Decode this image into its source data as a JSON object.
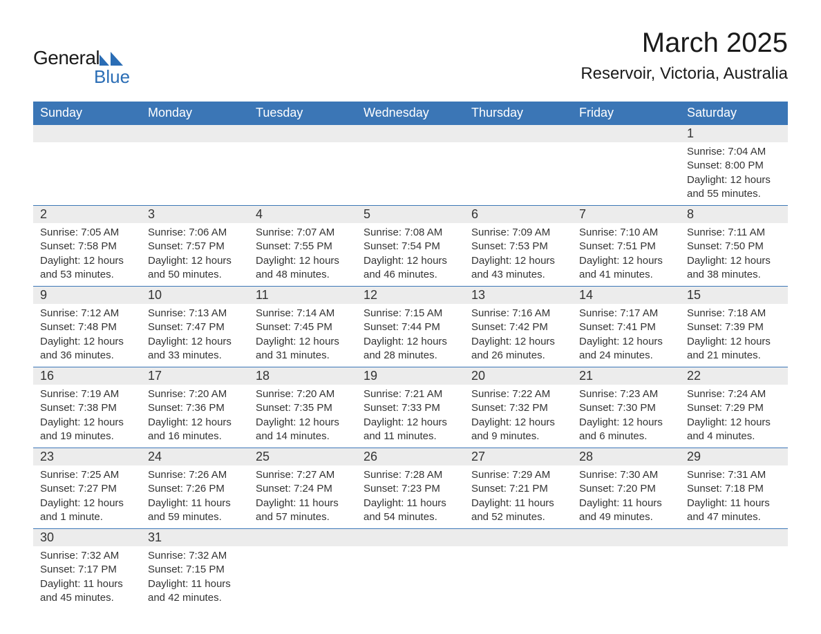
{
  "brand": {
    "word1": "General",
    "word2": "Blue",
    "mark_color": "#2a6db5",
    "word1_color": "#1a1a1a",
    "word2_color": "#2a6db5"
  },
  "header": {
    "month_title": "March 2025",
    "location": "Reservoir, Victoria, Australia",
    "title_fontsize": 40,
    "location_fontsize": 24,
    "title_color": "#1a1a1a"
  },
  "calendar": {
    "type": "table",
    "header_bg": "#3b76b6",
    "header_text_color": "#ffffff",
    "daynum_bg": "#ececec",
    "row_divider_color": "#3b76b6",
    "cell_text_color": "#333333",
    "background_color": "#ffffff",
    "header_fontsize": 18,
    "daynum_fontsize": 18,
    "detail_fontsize": 15,
    "columns": [
      "Sunday",
      "Monday",
      "Tuesday",
      "Wednesday",
      "Thursday",
      "Friday",
      "Saturday"
    ],
    "weeks": [
      [
        null,
        null,
        null,
        null,
        null,
        null,
        {
          "day": "1",
          "sunrise": "Sunrise: 7:04 AM",
          "sunset": "Sunset: 8:00 PM",
          "daylight1": "Daylight: 12 hours",
          "daylight2": "and 55 minutes."
        }
      ],
      [
        {
          "day": "2",
          "sunrise": "Sunrise: 7:05 AM",
          "sunset": "Sunset: 7:58 PM",
          "daylight1": "Daylight: 12 hours",
          "daylight2": "and 53 minutes."
        },
        {
          "day": "3",
          "sunrise": "Sunrise: 7:06 AM",
          "sunset": "Sunset: 7:57 PM",
          "daylight1": "Daylight: 12 hours",
          "daylight2": "and 50 minutes."
        },
        {
          "day": "4",
          "sunrise": "Sunrise: 7:07 AM",
          "sunset": "Sunset: 7:55 PM",
          "daylight1": "Daylight: 12 hours",
          "daylight2": "and 48 minutes."
        },
        {
          "day": "5",
          "sunrise": "Sunrise: 7:08 AM",
          "sunset": "Sunset: 7:54 PM",
          "daylight1": "Daylight: 12 hours",
          "daylight2": "and 46 minutes."
        },
        {
          "day": "6",
          "sunrise": "Sunrise: 7:09 AM",
          "sunset": "Sunset: 7:53 PM",
          "daylight1": "Daylight: 12 hours",
          "daylight2": "and 43 minutes."
        },
        {
          "day": "7",
          "sunrise": "Sunrise: 7:10 AM",
          "sunset": "Sunset: 7:51 PM",
          "daylight1": "Daylight: 12 hours",
          "daylight2": "and 41 minutes."
        },
        {
          "day": "8",
          "sunrise": "Sunrise: 7:11 AM",
          "sunset": "Sunset: 7:50 PM",
          "daylight1": "Daylight: 12 hours",
          "daylight2": "and 38 minutes."
        }
      ],
      [
        {
          "day": "9",
          "sunrise": "Sunrise: 7:12 AM",
          "sunset": "Sunset: 7:48 PM",
          "daylight1": "Daylight: 12 hours",
          "daylight2": "and 36 minutes."
        },
        {
          "day": "10",
          "sunrise": "Sunrise: 7:13 AM",
          "sunset": "Sunset: 7:47 PM",
          "daylight1": "Daylight: 12 hours",
          "daylight2": "and 33 minutes."
        },
        {
          "day": "11",
          "sunrise": "Sunrise: 7:14 AM",
          "sunset": "Sunset: 7:45 PM",
          "daylight1": "Daylight: 12 hours",
          "daylight2": "and 31 minutes."
        },
        {
          "day": "12",
          "sunrise": "Sunrise: 7:15 AM",
          "sunset": "Sunset: 7:44 PM",
          "daylight1": "Daylight: 12 hours",
          "daylight2": "and 28 minutes."
        },
        {
          "day": "13",
          "sunrise": "Sunrise: 7:16 AM",
          "sunset": "Sunset: 7:42 PM",
          "daylight1": "Daylight: 12 hours",
          "daylight2": "and 26 minutes."
        },
        {
          "day": "14",
          "sunrise": "Sunrise: 7:17 AM",
          "sunset": "Sunset: 7:41 PM",
          "daylight1": "Daylight: 12 hours",
          "daylight2": "and 24 minutes."
        },
        {
          "day": "15",
          "sunrise": "Sunrise: 7:18 AM",
          "sunset": "Sunset: 7:39 PM",
          "daylight1": "Daylight: 12 hours",
          "daylight2": "and 21 minutes."
        }
      ],
      [
        {
          "day": "16",
          "sunrise": "Sunrise: 7:19 AM",
          "sunset": "Sunset: 7:38 PM",
          "daylight1": "Daylight: 12 hours",
          "daylight2": "and 19 minutes."
        },
        {
          "day": "17",
          "sunrise": "Sunrise: 7:20 AM",
          "sunset": "Sunset: 7:36 PM",
          "daylight1": "Daylight: 12 hours",
          "daylight2": "and 16 minutes."
        },
        {
          "day": "18",
          "sunrise": "Sunrise: 7:20 AM",
          "sunset": "Sunset: 7:35 PM",
          "daylight1": "Daylight: 12 hours",
          "daylight2": "and 14 minutes."
        },
        {
          "day": "19",
          "sunrise": "Sunrise: 7:21 AM",
          "sunset": "Sunset: 7:33 PM",
          "daylight1": "Daylight: 12 hours",
          "daylight2": "and 11 minutes."
        },
        {
          "day": "20",
          "sunrise": "Sunrise: 7:22 AM",
          "sunset": "Sunset: 7:32 PM",
          "daylight1": "Daylight: 12 hours",
          "daylight2": "and 9 minutes."
        },
        {
          "day": "21",
          "sunrise": "Sunrise: 7:23 AM",
          "sunset": "Sunset: 7:30 PM",
          "daylight1": "Daylight: 12 hours",
          "daylight2": "and 6 minutes."
        },
        {
          "day": "22",
          "sunrise": "Sunrise: 7:24 AM",
          "sunset": "Sunset: 7:29 PM",
          "daylight1": "Daylight: 12 hours",
          "daylight2": "and 4 minutes."
        }
      ],
      [
        {
          "day": "23",
          "sunrise": "Sunrise: 7:25 AM",
          "sunset": "Sunset: 7:27 PM",
          "daylight1": "Daylight: 12 hours",
          "daylight2": "and 1 minute."
        },
        {
          "day": "24",
          "sunrise": "Sunrise: 7:26 AM",
          "sunset": "Sunset: 7:26 PM",
          "daylight1": "Daylight: 11 hours",
          "daylight2": "and 59 minutes."
        },
        {
          "day": "25",
          "sunrise": "Sunrise: 7:27 AM",
          "sunset": "Sunset: 7:24 PM",
          "daylight1": "Daylight: 11 hours",
          "daylight2": "and 57 minutes."
        },
        {
          "day": "26",
          "sunrise": "Sunrise: 7:28 AM",
          "sunset": "Sunset: 7:23 PM",
          "daylight1": "Daylight: 11 hours",
          "daylight2": "and 54 minutes."
        },
        {
          "day": "27",
          "sunrise": "Sunrise: 7:29 AM",
          "sunset": "Sunset: 7:21 PM",
          "daylight1": "Daylight: 11 hours",
          "daylight2": "and 52 minutes."
        },
        {
          "day": "28",
          "sunrise": "Sunrise: 7:30 AM",
          "sunset": "Sunset: 7:20 PM",
          "daylight1": "Daylight: 11 hours",
          "daylight2": "and 49 minutes."
        },
        {
          "day": "29",
          "sunrise": "Sunrise: 7:31 AM",
          "sunset": "Sunset: 7:18 PM",
          "daylight1": "Daylight: 11 hours",
          "daylight2": "and 47 minutes."
        }
      ],
      [
        {
          "day": "30",
          "sunrise": "Sunrise: 7:32 AM",
          "sunset": "Sunset: 7:17 PM",
          "daylight1": "Daylight: 11 hours",
          "daylight2": "and 45 minutes."
        },
        {
          "day": "31",
          "sunrise": "Sunrise: 7:32 AM",
          "sunset": "Sunset: 7:15 PM",
          "daylight1": "Daylight: 11 hours",
          "daylight2": "and 42 minutes."
        },
        null,
        null,
        null,
        null,
        null
      ]
    ]
  }
}
